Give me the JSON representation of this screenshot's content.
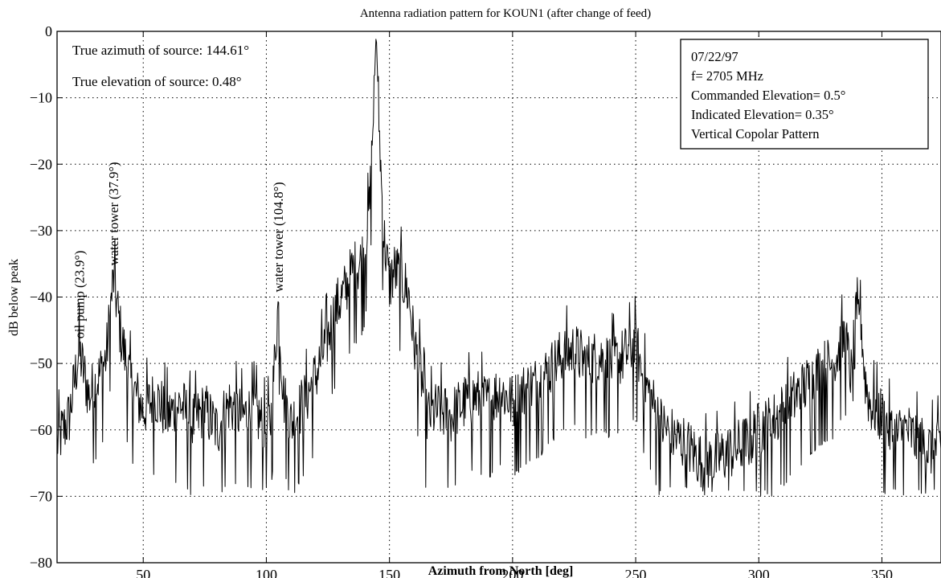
{
  "chart_data": {
    "type": "line",
    "title": "Antenna radiation pattern for KOUN1 (after change of feed)",
    "xlabel": "Azimuth from North [deg]",
    "ylabel": "dB below peak",
    "xlim": [
      15,
      374
    ],
    "ylim": [
      -80,
      0
    ],
    "x_ticks": [
      50,
      100,
      150,
      200,
      250,
      300,
      350
    ],
    "y_ticks": [
      0,
      -10,
      -20,
      -30,
      -40,
      -50,
      -60,
      -70,
      -80
    ],
    "x_tick_labels": [
      "50",
      "100",
      "150",
      "200",
      "250",
      "300",
      "350"
    ],
    "y_tick_labels": [
      "0",
      "−10",
      "−20",
      "−30",
      "−40",
      "−50",
      "−60",
      "−70",
      "−80"
    ],
    "grid": true,
    "annotations": {
      "azimuth_text": "True azimuth of source: 144.61°",
      "elevation_text": "True elevation of source: 0.48°"
    },
    "legend_box": {
      "lines": [
        "07/22/97",
        "f= 2705 MHz",
        "Commanded Elevation= 0.5°",
        "Indicated Elevation= 0.35°",
        "Vertical Copolar Pattern"
      ],
      "placement": "top-right"
    },
    "peak_labels": [
      {
        "text": "oil pump (23.9°)",
        "x": 23.9,
        "y": -47
      },
      {
        "text": "water tower (37.9°)",
        "x": 37.9,
        "y": -36
      },
      {
        "text": "water tower (104.8°)",
        "x": 104.8,
        "y": -40
      }
    ],
    "series": [
      {
        "x": [
          15,
          20,
          23.9,
          28,
          32,
          35,
          37.9,
          41,
          45,
          50,
          55,
          60,
          65,
          70,
          75,
          80,
          85,
          90,
          95,
          100,
          102,
          104.8,
          107,
          110,
          115,
          120,
          125,
          128,
          132,
          135,
          138,
          140,
          142,
          143.5,
          144.61,
          145.8,
          147.5,
          150,
          152,
          155,
          158,
          160,
          163,
          165,
          170,
          175,
          180,
          185,
          190,
          195,
          200,
          205,
          210,
          215,
          220,
          225,
          230,
          235,
          240,
          245,
          250,
          253,
          256,
          260,
          265,
          270,
          275,
          280,
          285,
          290,
          295,
          300,
          305,
          310,
          315,
          320,
          325,
          330,
          335,
          338,
          341,
          343,
          345,
          350,
          355,
          360,
          365,
          370,
          374
        ],
        "values": [
          -62,
          -58,
          -48,
          -55,
          -52,
          -49,
          -37,
          -46,
          -53,
          -57,
          -55,
          -58,
          -56,
          -59,
          -57,
          -60,
          -56,
          -58,
          -57,
          -60,
          -58,
          -41,
          -55,
          -59,
          -56,
          -52,
          -46,
          -42,
          -39,
          -36,
          -35,
          -33,
          -26,
          -12,
          0,
          -14,
          -30,
          -38,
          -36,
          -37,
          -40,
          -47,
          -52,
          -58,
          -57,
          -58,
          -56,
          -55,
          -56,
          -54,
          -56,
          -54,
          -53,
          -51,
          -49,
          -48,
          -50,
          -49,
          -50,
          -49,
          -47,
          -52,
          -55,
          -59,
          -61,
          -62,
          -64,
          -65,
          -64,
          -63,
          -62,
          -60,
          -59,
          -57,
          -55,
          -53,
          -51,
          -50,
          -46,
          -53,
          -40,
          -52,
          -56,
          -58,
          -61,
          -60,
          -62,
          -63,
          -62
        ]
      }
    ]
  }
}
